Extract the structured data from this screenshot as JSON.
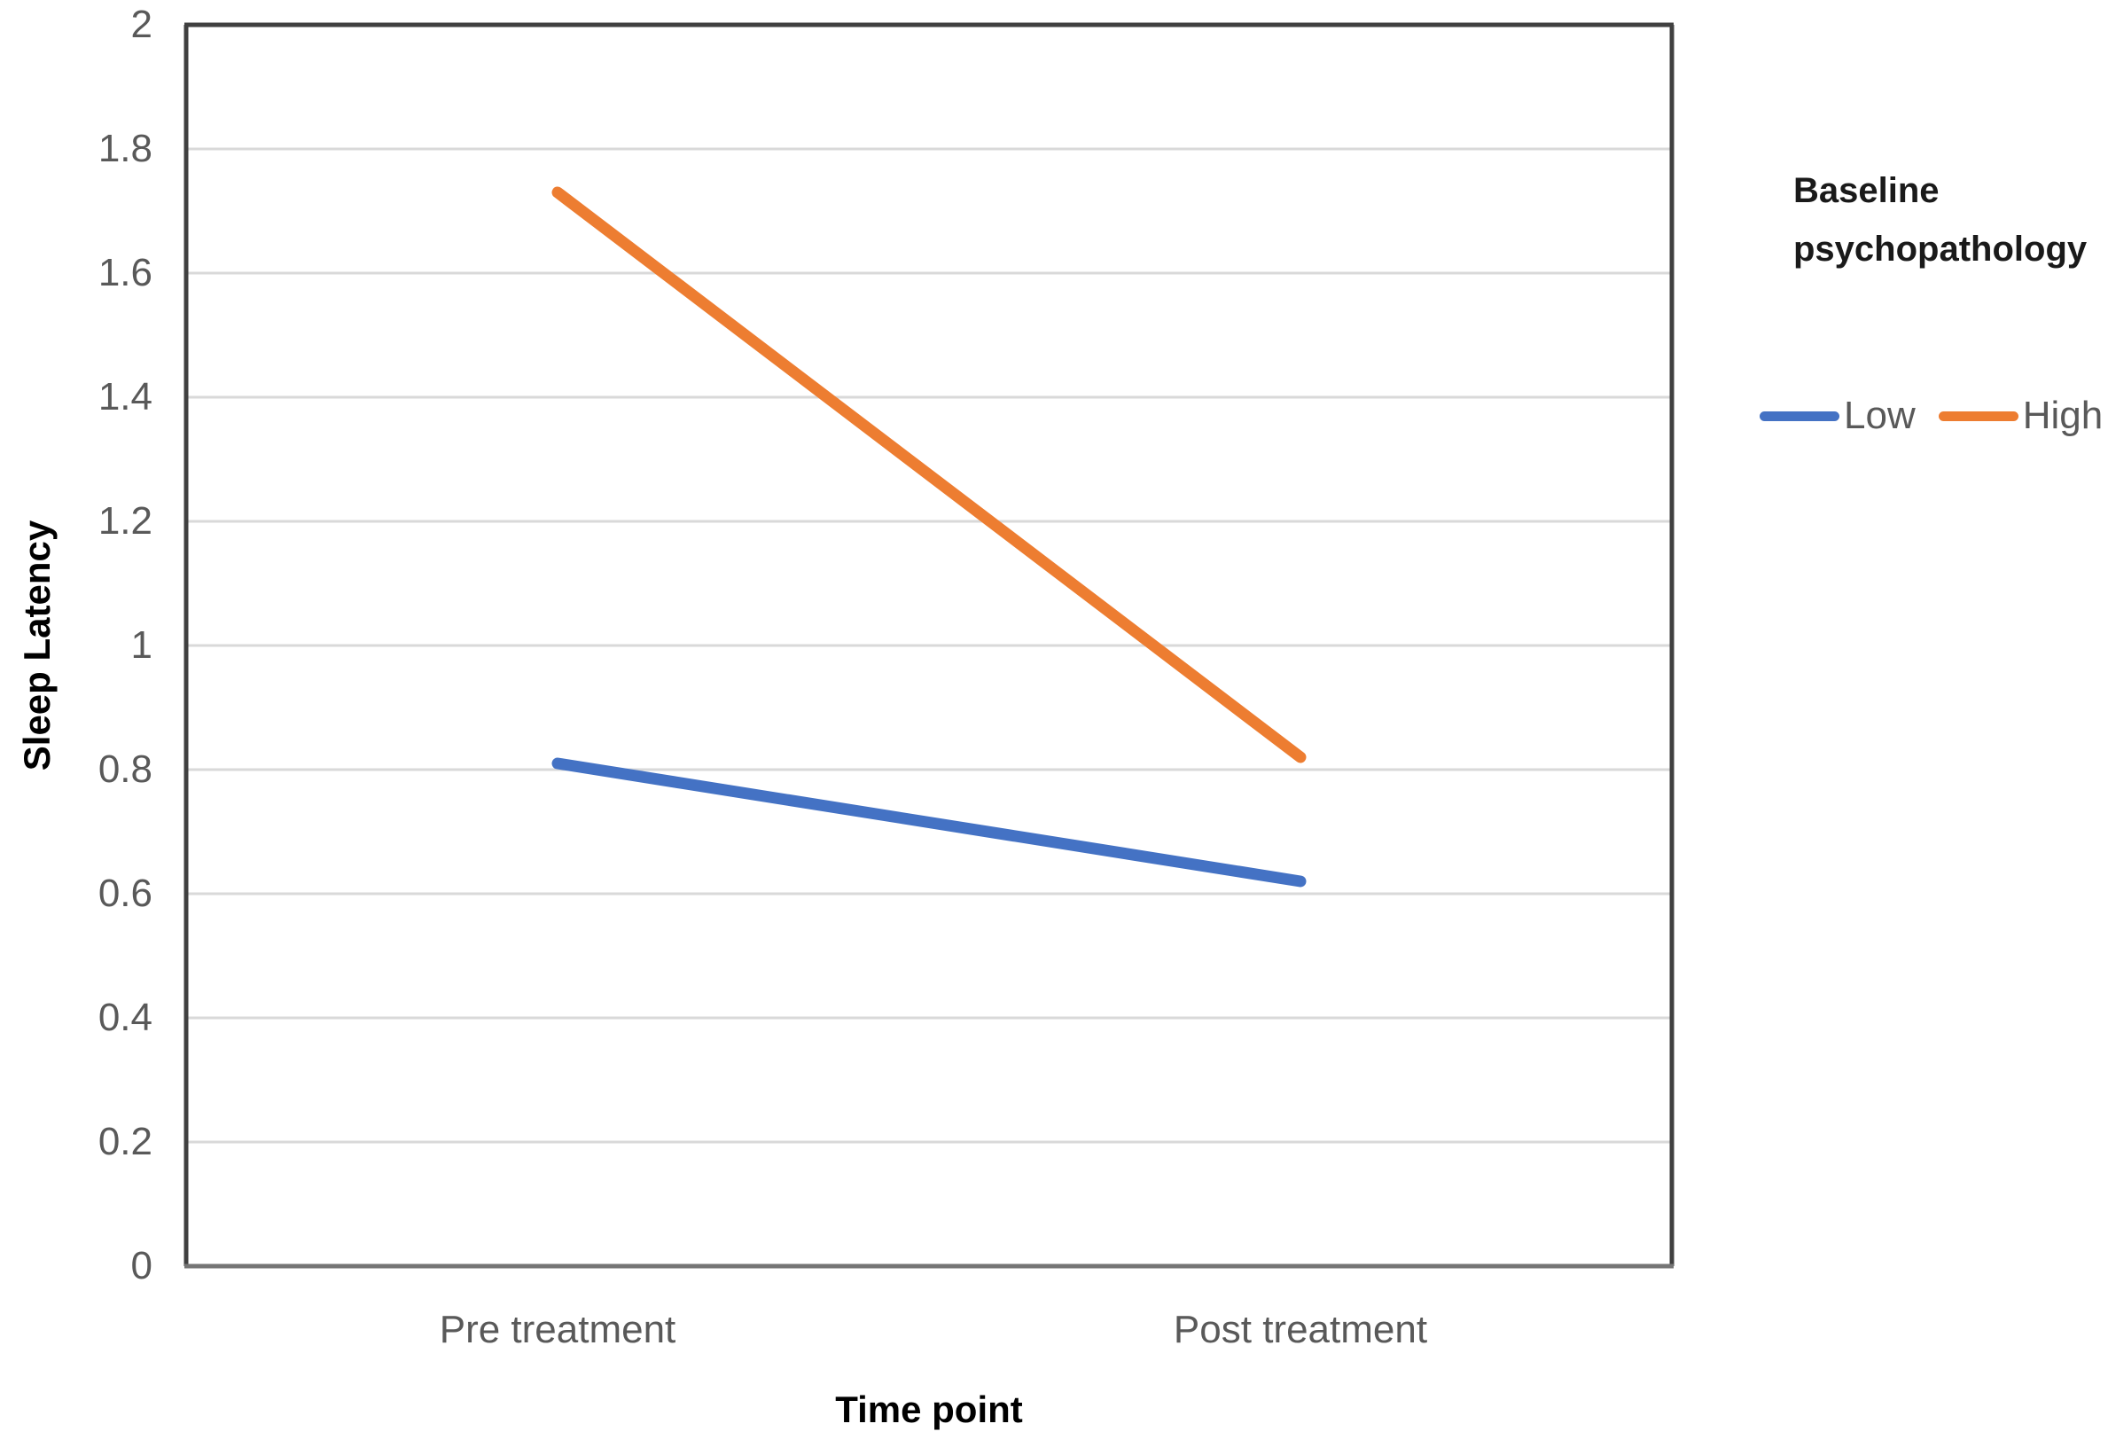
{
  "chart_data": {
    "type": "line",
    "title": "",
    "xlabel": "Time point",
    "ylabel": "Sleep Latency",
    "categories": [
      "Pre treatment",
      "Post treatment"
    ],
    "series": [
      {
        "name": "Low",
        "color": "#4472C4",
        "values": [
          0.81,
          0.62
        ]
      },
      {
        "name": "High",
        "color": "#ED7D31",
        "values": [
          1.73,
          0.82
        ]
      }
    ],
    "ylim": [
      0,
      2
    ],
    "ytick_step": 0.2,
    "ytick_labels": [
      "0",
      "0.2",
      "0.4",
      "0.6",
      "0.8",
      "1",
      "1.2",
      "1.4",
      "1.6",
      "1.8",
      "2"
    ],
    "grid": "horizontal",
    "legend": {
      "title": "Baseline psychopathology",
      "position": "right"
    },
    "style": {
      "gridline_color": "#D9D9D9",
      "plot_border_color": "#404040",
      "x_axis_line_color": "#757575",
      "tick_label_color": "#595959",
      "line_width": 13
    }
  }
}
